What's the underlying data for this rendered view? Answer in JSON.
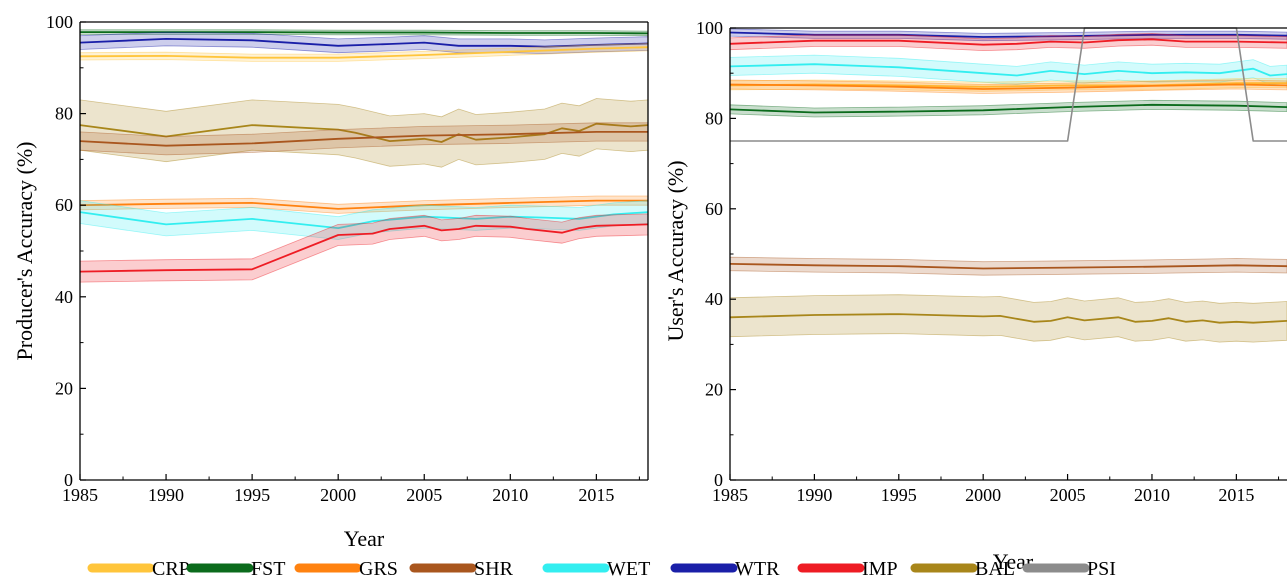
{
  "chart_data": [
    {
      "type": "line",
      "xlabel": "Year",
      "ylabel": "Producer's Accuracy (%)",
      "xlim": [
        1985,
        2018
      ],
      "ylim": [
        0,
        100
      ],
      "xticks": [
        1985,
        1990,
        1995,
        2000,
        2005,
        2010,
        2015
      ],
      "yticks": [
        0,
        20,
        40,
        60,
        80,
        100
      ],
      "grid": false,
      "shaded_band": true,
      "series": [
        {
          "name": "FST",
          "band": 0.5,
          "points": [
            [
              1985,
              97.8
            ],
            [
              1990,
              97.8
            ],
            [
              1995,
              97.8
            ],
            [
              2000,
              97.7
            ],
            [
              2005,
              97.7
            ],
            [
              2010,
              97.6
            ],
            [
              2015,
              97.6
            ],
            [
              2018,
              97.5
            ]
          ]
        },
        {
          "name": "WTR",
          "band": 1.5,
          "points": [
            [
              1985,
              95.5
            ],
            [
              1990,
              96.3
            ],
            [
              1995,
              96.0
            ],
            [
              2000,
              94.8
            ],
            [
              2003,
              95.2
            ],
            [
              2005,
              95.5
            ],
            [
              2007,
              94.8
            ],
            [
              2010,
              94.8
            ],
            [
              2012,
              94.6
            ],
            [
              2015,
              95.0
            ],
            [
              2018,
              95.3
            ]
          ]
        },
        {
          "name": "CRP",
          "band": 0.8,
          "points": [
            [
              1985,
              92.5
            ],
            [
              1990,
              92.6
            ],
            [
              1995,
              92.2
            ],
            [
              2000,
              92.2
            ],
            [
              2005,
              92.8
            ],
            [
              2010,
              93.5
            ],
            [
              2015,
              94.2
            ],
            [
              2018,
              94.5
            ]
          ]
        },
        {
          "name": "BAL",
          "band": 5.5,
          "points": [
            [
              1985,
              77.5
            ],
            [
              1990,
              75.0
            ],
            [
              1995,
              77.5
            ],
            [
              2000,
              76.5
            ],
            [
              2001,
              75.8
            ],
            [
              2003,
              74.0
            ],
            [
              2005,
              74.5
            ],
            [
              2006,
              73.8
            ],
            [
              2007,
              75.5
            ],
            [
              2008,
              74.3
            ],
            [
              2010,
              74.8
            ],
            [
              2012,
              75.5
            ],
            [
              2013,
              76.8
            ],
            [
              2014,
              76.2
            ],
            [
              2015,
              77.8
            ],
            [
              2017,
              77.2
            ],
            [
              2018,
              77.5
            ]
          ]
        },
        {
          "name": "SHR",
          "band": 2.0,
          "points": [
            [
              1985,
              74.0
            ],
            [
              1990,
              73.0
            ],
            [
              1995,
              73.5
            ],
            [
              2000,
              74.5
            ],
            [
              2005,
              75.2
            ],
            [
              2010,
              75.5
            ],
            [
              2015,
              76.0
            ],
            [
              2018,
              76.0
            ]
          ]
        },
        {
          "name": "GRS",
          "band": 1.0,
          "points": [
            [
              1985,
              60.0
            ],
            [
              1990,
              60.3
            ],
            [
              1995,
              60.5
            ],
            [
              2000,
              59.2
            ],
            [
              2005,
              60.0
            ],
            [
              2010,
              60.5
            ],
            [
              2015,
              61.0
            ],
            [
              2018,
              61.0
            ]
          ]
        },
        {
          "name": "WET",
          "band": 2.5,
          "points": [
            [
              1985,
              58.5
            ],
            [
              1990,
              55.8
            ],
            [
              1995,
              57.0
            ],
            [
              2000,
              55.0
            ],
            [
              2002,
              56.5
            ],
            [
              2005,
              57.5
            ],
            [
              2008,
              57.0
            ],
            [
              2010,
              57.5
            ],
            [
              2012,
              57.3
            ],
            [
              2014,
              57.0
            ],
            [
              2016,
              58.0
            ],
            [
              2018,
              58.5
            ]
          ]
        },
        {
          "name": "IMP",
          "band": 2.3,
          "points": [
            [
              1985,
              45.5
            ],
            [
              1990,
              45.8
            ],
            [
              1995,
              46.0
            ],
            [
              2000,
              53.5
            ],
            [
              2002,
              53.8
            ],
            [
              2003,
              54.8
            ],
            [
              2005,
              55.5
            ],
            [
              2006,
              54.5
            ],
            [
              2007,
              54.8
            ],
            [
              2008,
              55.5
            ],
            [
              2010,
              55.3
            ],
            [
              2011,
              54.8
            ],
            [
              2013,
              54.0
            ],
            [
              2014,
              55.0
            ],
            [
              2015,
              55.5
            ],
            [
              2018,
              55.8
            ]
          ]
        }
      ]
    },
    {
      "type": "line",
      "xlabel": "Year",
      "ylabel": "User's Accuracy (%)",
      "xlim": [
        1985,
        2018
      ],
      "ylim": [
        0,
        100
      ],
      "xticks": [
        1985,
        1990,
        1995,
        2000,
        2005,
        2010,
        2015
      ],
      "yticks": [
        0,
        20,
        40,
        60,
        80,
        100
      ],
      "grid": false,
      "shaded_band": true,
      "series": [
        {
          "name": "WTR",
          "band": 0.8,
          "points": [
            [
              1985,
              99.0
            ],
            [
              1990,
              98.5
            ],
            [
              1995,
              98.5
            ],
            [
              2000,
              98.0
            ],
            [
              2005,
              98.2
            ],
            [
              2010,
              98.5
            ],
            [
              2015,
              98.5
            ],
            [
              2018,
              98.3
            ]
          ]
        },
        {
          "name": "IMP",
          "band": 1.3,
          "points": [
            [
              1985,
              96.5
            ],
            [
              1990,
              97.2
            ],
            [
              1995,
              97.2
            ],
            [
              2000,
              96.3
            ],
            [
              2002,
              96.5
            ],
            [
              2004,
              97.0
            ],
            [
              2006,
              96.8
            ],
            [
              2008,
              97.3
            ],
            [
              2010,
              97.5
            ],
            [
              2012,
              97.0
            ],
            [
              2015,
              97.0
            ],
            [
              2018,
              96.8
            ]
          ]
        },
        {
          "name": "WET",
          "band": 2.0,
          "points": [
            [
              1985,
              91.5
            ],
            [
              1990,
              92.0
            ],
            [
              1995,
              91.3
            ],
            [
              2000,
              90.0
            ],
            [
              2002,
              89.5
            ],
            [
              2004,
              90.5
            ],
            [
              2006,
              89.8
            ],
            [
              2008,
              90.5
            ],
            [
              2010,
              90.0
            ],
            [
              2012,
              90.2
            ],
            [
              2014,
              90.0
            ],
            [
              2016,
              91.0
            ],
            [
              2017,
              89.5
            ],
            [
              2018,
              89.8
            ]
          ]
        },
        {
          "name": "CRP",
          "band": 1.0,
          "points": [
            [
              1985,
              87.3
            ],
            [
              1990,
              87.5
            ],
            [
              1995,
              87.3
            ],
            [
              2000,
              87.0
            ],
            [
              2005,
              87.3
            ],
            [
              2010,
              87.3
            ],
            [
              2015,
              87.8
            ],
            [
              2018,
              87.8
            ]
          ]
        },
        {
          "name": "GRS",
          "band": 1.0,
          "points": [
            [
              1985,
              87.5
            ],
            [
              1990,
              87.3
            ],
            [
              1995,
              87.0
            ],
            [
              2000,
              86.5
            ],
            [
              2005,
              86.8
            ],
            [
              2010,
              87.2
            ],
            [
              2015,
              87.5
            ],
            [
              2018,
              87.3
            ]
          ]
        },
        {
          "name": "FST",
          "band": 1.0,
          "points": [
            [
              1985,
              82.0
            ],
            [
              1990,
              81.3
            ],
            [
              1995,
              81.5
            ],
            [
              2000,
              81.8
            ],
            [
              2005,
              82.5
            ],
            [
              2010,
              83.0
            ],
            [
              2015,
              82.8
            ],
            [
              2018,
              82.5
            ]
          ]
        },
        {
          "name": "SHR",
          "band": 1.5,
          "points": [
            [
              1985,
              47.8
            ],
            [
              1990,
              47.5
            ],
            [
              1995,
              47.3
            ],
            [
              2000,
              46.8
            ],
            [
              2005,
              47.0
            ],
            [
              2010,
              47.2
            ],
            [
              2015,
              47.5
            ],
            [
              2018,
              47.3
            ]
          ]
        },
        {
          "name": "BAL",
          "band": 4.3,
          "points": [
            [
              1985,
              36.0
            ],
            [
              1990,
              36.5
            ],
            [
              1995,
              36.7
            ],
            [
              2000,
              36.2
            ],
            [
              2001,
              36.3
            ],
            [
              2003,
              35.0
            ],
            [
              2004,
              35.2
            ],
            [
              2005,
              36.0
            ],
            [
              2006,
              35.3
            ],
            [
              2008,
              36.0
            ],
            [
              2009,
              35.0
            ],
            [
              2010,
              35.2
            ],
            [
              2011,
              35.8
            ],
            [
              2012,
              35.0
            ],
            [
              2013,
              35.3
            ],
            [
              2014,
              34.8
            ],
            [
              2015,
              35.0
            ],
            [
              2016,
              34.8
            ],
            [
              2018,
              35.2
            ]
          ]
        },
        {
          "name": "PSI",
          "band": 0,
          "points": [
            [
              1985,
              75
            ],
            [
              2005,
              75
            ],
            [
              2006,
              100
            ],
            [
              2015,
              100
            ],
            [
              2016,
              75
            ],
            [
              2018,
              75
            ]
          ]
        }
      ]
    }
  ],
  "legend": {
    "placement": "bottom",
    "items": [
      {
        "name": "CRP",
        "color": "#FFC53B"
      },
      {
        "name": "FST",
        "color": "#0B6B1C"
      },
      {
        "name": "GRS",
        "color": "#FF8210"
      },
      {
        "name": "SHR",
        "color": "#A9561E"
      },
      {
        "name": "WET",
        "color": "#33EEF0"
      },
      {
        "name": "WTR",
        "color": "#1A1FA8"
      },
      {
        "name": "IMP",
        "color": "#EE1C24"
      },
      {
        "name": "BAL",
        "color": "#A8861A"
      },
      {
        "name": "PSI",
        "color": "#8C8C8C"
      }
    ]
  }
}
